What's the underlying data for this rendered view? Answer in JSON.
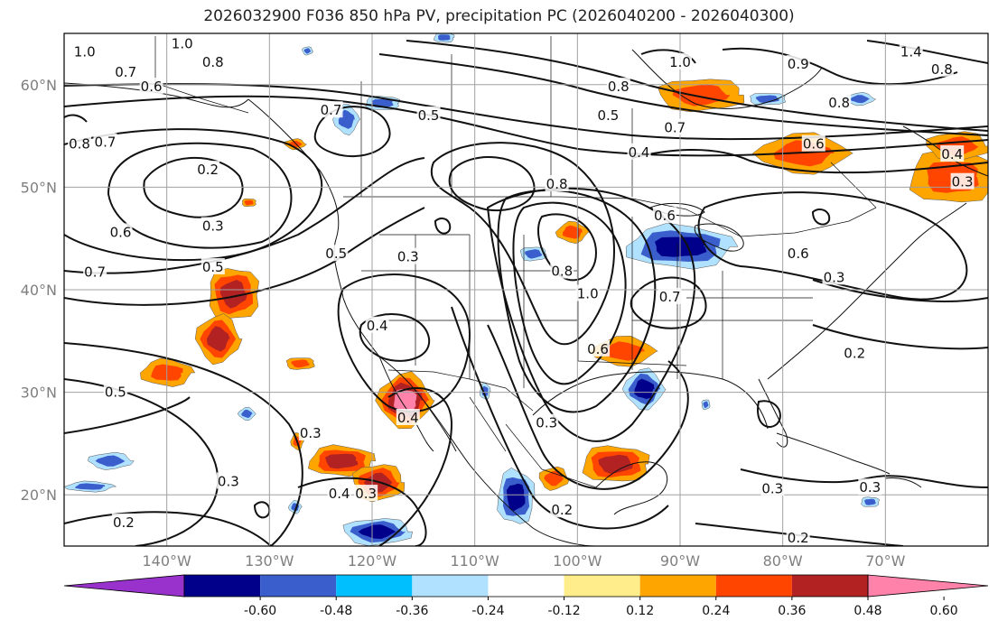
{
  "title": "2026032900 F036 850 hPa PV, precipitation PC (2026040200 - 2026040300)",
  "map": {
    "lon_range": [
      -150,
      -60
    ],
    "lat_range": [
      15,
      65
    ],
    "lon_ticks": [
      {
        "lon": -140,
        "label": "140°W"
      },
      {
        "lon": -130,
        "label": "130°W"
      },
      {
        "lon": -120,
        "label": "120°W"
      },
      {
        "lon": -110,
        "label": "110°W"
      },
      {
        "lon": -100,
        "label": "100°W"
      },
      {
        "lon": -90,
        "label": "90°W"
      },
      {
        "lon": -80,
        "label": "80°W"
      },
      {
        "lon": -70,
        "label": "70°W"
      }
    ],
    "lat_ticks": [
      {
        "lat": 20,
        "label": "20°N"
      },
      {
        "lat": 30,
        "label": "30°N"
      },
      {
        "lat": 40,
        "label": "40°N"
      },
      {
        "lat": 50,
        "label": "50°N"
      },
      {
        "lat": 60,
        "label": "60°N"
      }
    ]
  },
  "colorbar": {
    "colors": [
      "#9932cc",
      "#00008b",
      "#3a5fcd",
      "#00bfff",
      "#b0e2ff",
      "#ffffff",
      "#ffec8b",
      "#ffa500",
      "#ff4500",
      "#b22222",
      "#ff82ab"
    ],
    "tick_labels": [
      "-0.60",
      "-0.48",
      "-0.36",
      "-0.24",
      "-0.12",
      "0.12",
      "0.24",
      "0.36",
      "0.48",
      "0.60"
    ]
  },
  "contour_labels": [
    {
      "text": "1.0",
      "lon": -148,
      "lat": 63.2
    },
    {
      "text": "1.0",
      "lon": -138.5,
      "lat": 64
    },
    {
      "text": "0.8",
      "lon": -135.5,
      "lat": 62.2
    },
    {
      "text": "0.7",
      "lon": -144,
      "lat": 61.2
    },
    {
      "text": "0.6",
      "lon": -141.5,
      "lat": 59.8
    },
    {
      "text": "0.7",
      "lon": -124,
      "lat": 57.5
    },
    {
      "text": "0.5",
      "lon": -114.5,
      "lat": 57
    },
    {
      "text": "0.8",
      "lon": -96,
      "lat": 59.8
    },
    {
      "text": "0.5",
      "lon": -97,
      "lat": 57
    },
    {
      "text": "0.7",
      "lon": -90.5,
      "lat": 55.8
    },
    {
      "text": "0.4",
      "lon": -94,
      "lat": 53.4
    },
    {
      "text": "1.0",
      "lon": -90,
      "lat": 62.2
    },
    {
      "text": "0.9",
      "lon": -78.5,
      "lat": 62
    },
    {
      "text": "0.8",
      "lon": -74.5,
      "lat": 58.2
    },
    {
      "text": "1.4",
      "lon": -67.5,
      "lat": 63.2
    },
    {
      "text": "0.8",
      "lon": -64.5,
      "lat": 61.5
    },
    {
      "text": "0.6",
      "lon": -77,
      "lat": 54.2
    },
    {
      "text": "0.4",
      "lon": -63.5,
      "lat": 53.2
    },
    {
      "text": "0.3",
      "lon": -62.5,
      "lat": 50.5
    },
    {
      "text": "0.8",
      "lon": -148.5,
      "lat": 54.2
    },
    {
      "text": "0.7",
      "lon": -146,
      "lat": 54.4
    },
    {
      "text": "0.2",
      "lon": -136,
      "lat": 51.7
    },
    {
      "text": "0.3",
      "lon": -135.5,
      "lat": 46.2
    },
    {
      "text": "0.6",
      "lon": -144.5,
      "lat": 45.6
    },
    {
      "text": "0.5",
      "lon": -135.5,
      "lat": 42.2
    },
    {
      "text": "0.7",
      "lon": -147,
      "lat": 41.7
    },
    {
      "text": "0.5",
      "lon": -123.5,
      "lat": 43.5
    },
    {
      "text": "0.3",
      "lon": -116.5,
      "lat": 43.2
    },
    {
      "text": "0.8",
      "lon": -102,
      "lat": 50.3
    },
    {
      "text": "0.8",
      "lon": -101.5,
      "lat": 41.8
    },
    {
      "text": "1.0",
      "lon": -99,
      "lat": 39.6
    },
    {
      "text": "0.6",
      "lon": -91.5,
      "lat": 47.2
    },
    {
      "text": "0.7",
      "lon": -91,
      "lat": 39.3
    },
    {
      "text": "0.6",
      "lon": -78.5,
      "lat": 43.5
    },
    {
      "text": "0.3",
      "lon": -75,
      "lat": 41.2
    },
    {
      "text": "0.4",
      "lon": -119.5,
      "lat": 36.5
    },
    {
      "text": "0.6",
      "lon": -98,
      "lat": 34.2
    },
    {
      "text": "0.2",
      "lon": -73,
      "lat": 33.8
    },
    {
      "text": "0.5",
      "lon": -145,
      "lat": 30
    },
    {
      "text": "0.4",
      "lon": -116.5,
      "lat": 27.5
    },
    {
      "text": "0.3",
      "lon": -126,
      "lat": 26
    },
    {
      "text": "0.3",
      "lon": -103,
      "lat": 27
    },
    {
      "text": "0.3",
      "lon": -134,
      "lat": 21.3
    },
    {
      "text": "0.4",
      "lon": -123.2,
      "lat": 20.1
    },
    {
      "text": "0.3",
      "lon": -120.6,
      "lat": 20.1
    },
    {
      "text": "0.2",
      "lon": -144.2,
      "lat": 17.3
    },
    {
      "text": "0.2",
      "lon": -101.5,
      "lat": 18.5
    },
    {
      "text": "0.3",
      "lon": -81,
      "lat": 20.6
    },
    {
      "text": "0.3",
      "lon": -71.5,
      "lat": 20.7
    },
    {
      "text": "0.2",
      "lon": -78.5,
      "lat": 15.8
    }
  ],
  "precip_blobs": [
    {
      "lon": -88,
      "lat": 59,
      "rx": 4.2,
      "ry": 1.6,
      "levels": [
        "#ffa500",
        "#ff4500"
      ]
    },
    {
      "lon": -78,
      "lat": 53.3,
      "rx": 4.4,
      "ry": 1.9,
      "levels": [
        "#ffa500",
        "#ff4500"
      ]
    },
    {
      "lon": -63.5,
      "lat": 51,
      "rx": 4.2,
      "ry": 2.6,
      "levels": [
        "#ffa500",
        "#ff4500"
      ]
    },
    {
      "lon": -63,
      "lat": 54,
      "rx": 3,
      "ry": 1.4,
      "levels": [
        "#ffa500",
        "#ff4500"
      ]
    },
    {
      "lon": -100.5,
      "lat": 45.6,
      "rx": 1.5,
      "ry": 1,
      "levels": [
        "#ffa500",
        "#ff4500"
      ]
    },
    {
      "lon": -133.5,
      "lat": 39.6,
      "rx": 2.5,
      "ry": 2.6,
      "levels": [
        "#ffa500",
        "#ff4500",
        "#b22222"
      ]
    },
    {
      "lon": -135,
      "lat": 35.2,
      "rx": 2.1,
      "ry": 2.3,
      "levels": [
        "#ffa500",
        "#ff4500",
        "#b22222"
      ]
    },
    {
      "lon": -140,
      "lat": 31.9,
      "rx": 2.5,
      "ry": 1.3,
      "levels": [
        "#ffa500",
        "#ff4500"
      ]
    },
    {
      "lon": -127,
      "lat": 32.8,
      "rx": 1.4,
      "ry": 0.6,
      "levels": [
        "#ffa500",
        "#ff4500"
      ]
    },
    {
      "lon": -116.8,
      "lat": 29.2,
      "rx": 2.6,
      "ry": 2.6,
      "levels": [
        "#ffa500",
        "#ff4500",
        "#b22222",
        "#ff82ab"
      ]
    },
    {
      "lon": -123,
      "lat": 23.3,
      "rx": 3.2,
      "ry": 1.5,
      "levels": [
        "#ffa500",
        "#ff4500",
        "#b22222"
      ]
    },
    {
      "lon": -119.4,
      "lat": 21.2,
      "rx": 2.5,
      "ry": 1.8,
      "levels": [
        "#ffa500",
        "#ff4500",
        "#b22222"
      ]
    },
    {
      "lon": -95.5,
      "lat": 34,
      "rx": 3,
      "ry": 1.4,
      "levels": [
        "#ffa500",
        "#ff4500"
      ]
    },
    {
      "lon": -96.3,
      "lat": 23,
      "rx": 3.3,
      "ry": 1.8,
      "levels": [
        "#ffa500",
        "#ff4500",
        "#b22222"
      ]
    },
    {
      "lon": -102.3,
      "lat": 21.6,
      "rx": 1.4,
      "ry": 1.1,
      "levels": [
        "#ffa500",
        "#ff4500"
      ]
    },
    {
      "lon": -127.3,
      "lat": 25.2,
      "rx": 0.6,
      "ry": 0.8,
      "levels": [
        "#ffa500",
        "#ff4500"
      ]
    },
    {
      "lon": -132,
      "lat": 48.5,
      "rx": 0.7,
      "ry": 0.4,
      "levels": [
        "#ffa500",
        "#ff4500"
      ]
    },
    {
      "lon": -127.5,
      "lat": 54.2,
      "rx": 1,
      "ry": 0.5,
      "levels": [
        "#ffa500",
        "#ff4500"
      ]
    },
    {
      "lon": -90,
      "lat": 44.2,
      "rx": 5.2,
      "ry": 2.1,
      "levels": [
        "#b0e2ff",
        "#3a5fcd",
        "#00008b"
      ]
    },
    {
      "lon": -104.3,
      "lat": 43.5,
      "rx": 1.3,
      "ry": 0.7,
      "levels": [
        "#b0e2ff",
        "#3a5fcd"
      ]
    },
    {
      "lon": -93.5,
      "lat": 30.3,
      "rx": 1.9,
      "ry": 1.9,
      "levels": [
        "#b0e2ff",
        "#3a5fcd",
        "#00008b"
      ]
    },
    {
      "lon": -106,
      "lat": 19.8,
      "rx": 1.8,
      "ry": 2.7,
      "levels": [
        "#b0e2ff",
        "#3a5fcd",
        "#00008b"
      ]
    },
    {
      "lon": -119.5,
      "lat": 16.4,
      "rx": 3.3,
      "ry": 1.3,
      "levels": [
        "#b0e2ff",
        "#3a5fcd",
        "#00008b"
      ]
    },
    {
      "lon": -122.5,
      "lat": 56.6,
      "rx": 1.2,
      "ry": 1.4,
      "levels": [
        "#b0e2ff",
        "#3a5fcd"
      ]
    },
    {
      "lon": -119,
      "lat": 58.2,
      "rx": 1.7,
      "ry": 0.7,
      "levels": [
        "#b0e2ff",
        "#3a5fcd"
      ]
    },
    {
      "lon": -145.5,
      "lat": 23.3,
      "rx": 2.1,
      "ry": 0.8,
      "levels": [
        "#b0e2ff",
        "#3a5fcd"
      ]
    },
    {
      "lon": -147.5,
      "lat": 20.8,
      "rx": 2.3,
      "ry": 0.5,
      "levels": [
        "#b0e2ff",
        "#3a5fcd"
      ]
    },
    {
      "lon": -81.5,
      "lat": 58.6,
      "rx": 1.8,
      "ry": 0.6,
      "levels": [
        "#b0e2ff",
        "#3a5fcd"
      ]
    },
    {
      "lon": -72.5,
      "lat": 58.6,
      "rx": 1.4,
      "ry": 0.6,
      "levels": [
        "#b0e2ff",
        "#3a5fcd"
      ]
    },
    {
      "lon": -109,
      "lat": 30.1,
      "rx": 0.5,
      "ry": 0.8,
      "levels": [
        "#b0e2ff",
        "#3a5fcd"
      ]
    },
    {
      "lon": -87.5,
      "lat": 28.8,
      "rx": 0.4,
      "ry": 0.5,
      "levels": [
        "#b0e2ff",
        "#3a5fcd"
      ]
    },
    {
      "lon": -132.2,
      "lat": 27.9,
      "rx": 0.8,
      "ry": 0.6,
      "levels": [
        "#b0e2ff",
        "#3a5fcd"
      ]
    },
    {
      "lon": -113,
      "lat": 64.6,
      "rx": 1,
      "ry": 0.5,
      "levels": [
        "#b0e2ff",
        "#3a5fcd"
      ]
    },
    {
      "lon": -126.3,
      "lat": 63.3,
      "rx": 0.5,
      "ry": 0.4,
      "levels": [
        "#b0e2ff",
        "#3a5fcd"
      ]
    },
    {
      "lon": -127.5,
      "lat": 18.8,
      "rx": 0.6,
      "ry": 0.6,
      "levels": [
        "#b0e2ff",
        "#3a5fcd"
      ]
    },
    {
      "lon": -71.5,
      "lat": 19.3,
      "rx": 0.9,
      "ry": 0.5,
      "levels": [
        "#b0e2ff",
        "#3a5fcd"
      ]
    }
  ]
}
